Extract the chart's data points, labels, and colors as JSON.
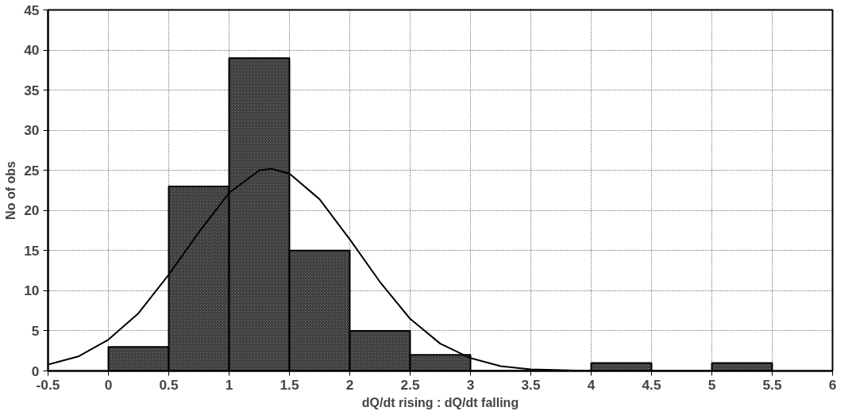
{
  "chart_data": {
    "type": "histogram",
    "xlabel": "dQ/dt rising : dQ/dt falling",
    "ylabel": "No of obs",
    "bins": [
      0,
      0.5,
      1,
      1.5,
      2,
      2.5,
      3,
      3.5,
      4,
      4.5,
      5,
      5.5
    ],
    "values": [
      3,
      23,
      39,
      15,
      5,
      2,
      0,
      0,
      1,
      0,
      1
    ],
    "color": "#6e6e6e",
    "series": [
      {
        "type": "line",
        "color": "#000000",
        "x": [
          -0.5,
          -0.25,
          0,
          0.25,
          0.5,
          0.75,
          1,
          1.25,
          1.35,
          1.5,
          1.75,
          2,
          2.25,
          2.5,
          2.75,
          3,
          3.25,
          3.5,
          3.75,
          4
        ],
        "values": [
          0.8,
          1.8,
          3.9,
          7.2,
          12,
          17.3,
          22.2,
          25,
          25.2,
          24.6,
          21.4,
          16.4,
          11.1,
          6.5,
          3.4,
          1.6,
          0.6,
          0.2,
          0.1,
          0
        ]
      }
    ],
    "xlim": [
      -0.5,
      6
    ],
    "ylim": [
      0,
      45
    ],
    "xticks": [
      -0.5,
      0,
      0.5,
      1,
      1.5,
      2,
      2.5,
      3,
      3.5,
      4,
      4.5,
      5,
      5.5,
      6
    ],
    "yticks": [
      0,
      5,
      10,
      15,
      20,
      25,
      30,
      35,
      40,
      45
    ],
    "grid": true
  }
}
